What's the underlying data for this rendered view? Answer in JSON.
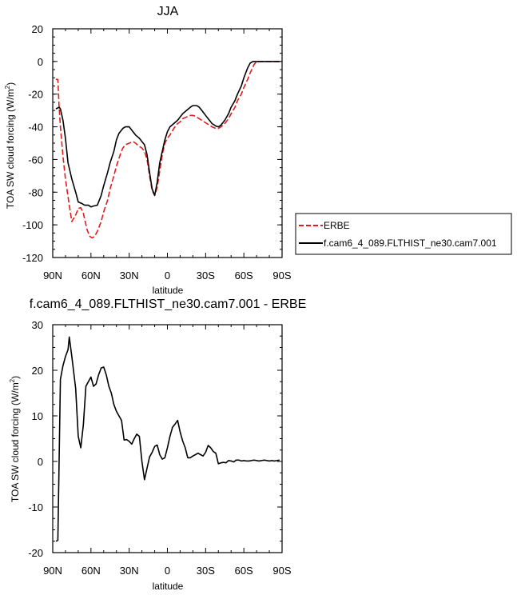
{
  "chart_data": [
    {
      "type": "line",
      "title": "JJA",
      "xlabel": "latitude",
      "ylabel": "TOA SW cloud forcing (W/m",
      "ylabel_sup": "2",
      "ylabel_close": ")",
      "xlim": [
        -90,
        90
      ],
      "ylim": [
        -120,
        20
      ],
      "xticks": [
        -90,
        -60,
        -30,
        0,
        30,
        60,
        90
      ],
      "xticklabels": [
        "90N",
        "60N",
        "30N",
        "0",
        "30S",
        "60S",
        "90S"
      ],
      "yticks": [
        20,
        0,
        -20,
        -40,
        -60,
        -80,
        -100,
        -120
      ],
      "yticklabels": [
        "20",
        "0",
        "-20",
        "-40",
        "-60",
        "-80",
        "-100",
        "-120"
      ],
      "grid": false,
      "legend": "right",
      "series": [
        {
          "name": "ERBE",
          "color": "#e41a1c",
          "dash": "dashed",
          "x": [
            -87.5,
            -86,
            -85,
            -84,
            -82,
            -80,
            -77,
            -75,
            -72,
            -70,
            -68,
            -66,
            -63,
            -61,
            -59,
            -57,
            -55,
            -52,
            -50,
            -47,
            -45,
            -42,
            -40,
            -37,
            -35,
            -33,
            -30,
            -27,
            -25,
            -22,
            -20,
            -18,
            -16,
            -14,
            -12,
            -10,
            -8,
            -6,
            -4,
            -2,
            0,
            2,
            5,
            8,
            10,
            12,
            15,
            18,
            20,
            22,
            25,
            27,
            30,
            33,
            35,
            38,
            40,
            42,
            45,
            48,
            50,
            53,
            55,
            58,
            60,
            63,
            65,
            68,
            70,
            75,
            80,
            85,
            88
          ],
          "y": [
            -11,
            -11,
            -28,
            -40,
            -58,
            -72,
            -88,
            -98,
            -94,
            -90,
            -89.5,
            -93,
            -103,
            -107,
            -108,
            -107,
            -104,
            -98,
            -92,
            -85,
            -78,
            -70,
            -64,
            -57,
            -53,
            -51,
            -50,
            -49,
            -50,
            -52,
            -53,
            -55,
            -60,
            -70,
            -79,
            -82,
            -77,
            -67,
            -57,
            -50,
            -47,
            -45,
            -41,
            -38,
            -37,
            -35,
            -34,
            -33,
            -33,
            -33.5,
            -35,
            -36,
            -37.5,
            -39,
            -40,
            -41,
            -41,
            -40,
            -38,
            -35,
            -32,
            -28,
            -24,
            -20,
            -16,
            -11,
            -7,
            -2,
            0,
            0,
            0,
            0,
            0
          ]
        },
        {
          "name": "f.cam6_4_089.FLTHIST_ne30.cam7.001",
          "color": "#000000",
          "dash": "solid",
          "x": [
            -87.5,
            -85,
            -84,
            -82,
            -80,
            -78,
            -75,
            -72,
            -70,
            -67,
            -65,
            -62,
            -60,
            -58,
            -55,
            -52,
            -50,
            -47,
            -45,
            -42,
            -40,
            -38,
            -35,
            -33,
            -30,
            -28,
            -25,
            -22,
            -20,
            -18,
            -16,
            -14,
            -12,
            -10,
            -8,
            -6,
            -4,
            -2,
            0,
            2,
            5,
            8,
            10,
            12,
            15,
            18,
            20,
            23,
            25,
            27,
            30,
            33,
            35,
            38,
            40,
            42,
            45,
            48,
            50,
            53,
            55,
            58,
            60,
            63,
            65,
            67,
            70,
            75,
            80,
            85,
            88
          ],
          "y": [
            -29,
            -28,
            -29,
            -36,
            -47,
            -62,
            -72,
            -80,
            -86,
            -87,
            -88,
            -88,
            -89,
            -88.5,
            -88,
            -82,
            -76,
            -68,
            -62,
            -55,
            -48,
            -44,
            -41,
            -40,
            -40,
            -42,
            -45,
            -47,
            -49,
            -51,
            -57,
            -68,
            -78,
            -82,
            -74,
            -62,
            -55,
            -48,
            -43,
            -40,
            -38,
            -36,
            -34,
            -32,
            -30,
            -28,
            -27,
            -27,
            -28,
            -30,
            -33,
            -36,
            -38,
            -39.5,
            -40,
            -39,
            -36,
            -32,
            -28,
            -24,
            -20,
            -15,
            -10,
            -4,
            -1,
            0,
            0,
            0,
            0,
            0,
            0
          ]
        }
      ]
    },
    {
      "type": "line",
      "title": "f.cam6_4_089.FLTHIST_ne30.cam7.001 - ERBE",
      "xlabel": "latitude",
      "ylabel": "TOA SW cloud forcing (W/m",
      "ylabel_sup": "2",
      "ylabel_close": ")",
      "xlim": [
        -90,
        90
      ],
      "ylim": [
        -20,
        30
      ],
      "xticks": [
        -90,
        -60,
        -30,
        0,
        30,
        60,
        90
      ],
      "xticklabels": [
        "90N",
        "60N",
        "30N",
        "0",
        "30S",
        "60S",
        "90S"
      ],
      "yticks": [
        30,
        20,
        10,
        0,
        -10,
        -20
      ],
      "yticklabels": [
        "30",
        "20",
        "10",
        "0",
        "-10",
        "-20"
      ],
      "grid": false,
      "series": [
        {
          "color": "#000000",
          "dash": "solid",
          "x": [
            -87.5,
            -86,
            -84,
            -82,
            -80,
            -78,
            -77,
            -75,
            -72,
            -70,
            -68,
            -66,
            -64,
            -62,
            -60,
            -58,
            -56,
            -54,
            -52,
            -50,
            -48,
            -46,
            -44,
            -42,
            -40,
            -38,
            -36,
            -34,
            -32,
            -30,
            -28,
            -26,
            -24,
            -22,
            -20,
            -18,
            -16,
            -14,
            -12,
            -10,
            -8,
            -6,
            -4,
            -2,
            0,
            2,
            4,
            6,
            8,
            10,
            12,
            14,
            16,
            18,
            20,
            22,
            24,
            26,
            28,
            30,
            32,
            34,
            36,
            38,
            40,
            42,
            44,
            46,
            48,
            50,
            52,
            54,
            56,
            58,
            60,
            62,
            64,
            66,
            68,
            70,
            72,
            74,
            76,
            78,
            80,
            82,
            84,
            86,
            88
          ],
          "y": [
            -17.5,
            -17.3,
            18,
            21,
            23,
            24.5,
            27.3,
            23,
            16,
            5.5,
            3,
            8,
            16.5,
            17.5,
            18.5,
            16.5,
            17,
            19,
            20.5,
            20.7,
            19,
            16.5,
            15,
            12.5,
            11,
            10,
            9,
            4.7,
            4.8,
            4.4,
            3.8,
            5,
            6,
            5.5,
            0,
            -4,
            -1.5,
            1,
            2,
            3.3,
            3.6,
            1.5,
            0.5,
            0.8,
            3,
            5.5,
            7.5,
            8.2,
            9,
            6.5,
            4.5,
            3,
            0.8,
            0.8,
            1.2,
            1.5,
            1.8,
            1.5,
            1.2,
            2,
            3.5,
            3,
            2.2,
            1.8,
            -0.5,
            -0.3,
            -0.2,
            -0.3,
            0.2,
            0.1,
            -0.1,
            0.3,
            0.3,
            0.1,
            0.2,
            0.1,
            0.1,
            0.2,
            0.3,
            0.2,
            0.1,
            0.2,
            0.3,
            0.2,
            0.1,
            0.2,
            0.1,
            0.2,
            0.3
          ]
        }
      ]
    }
  ]
}
